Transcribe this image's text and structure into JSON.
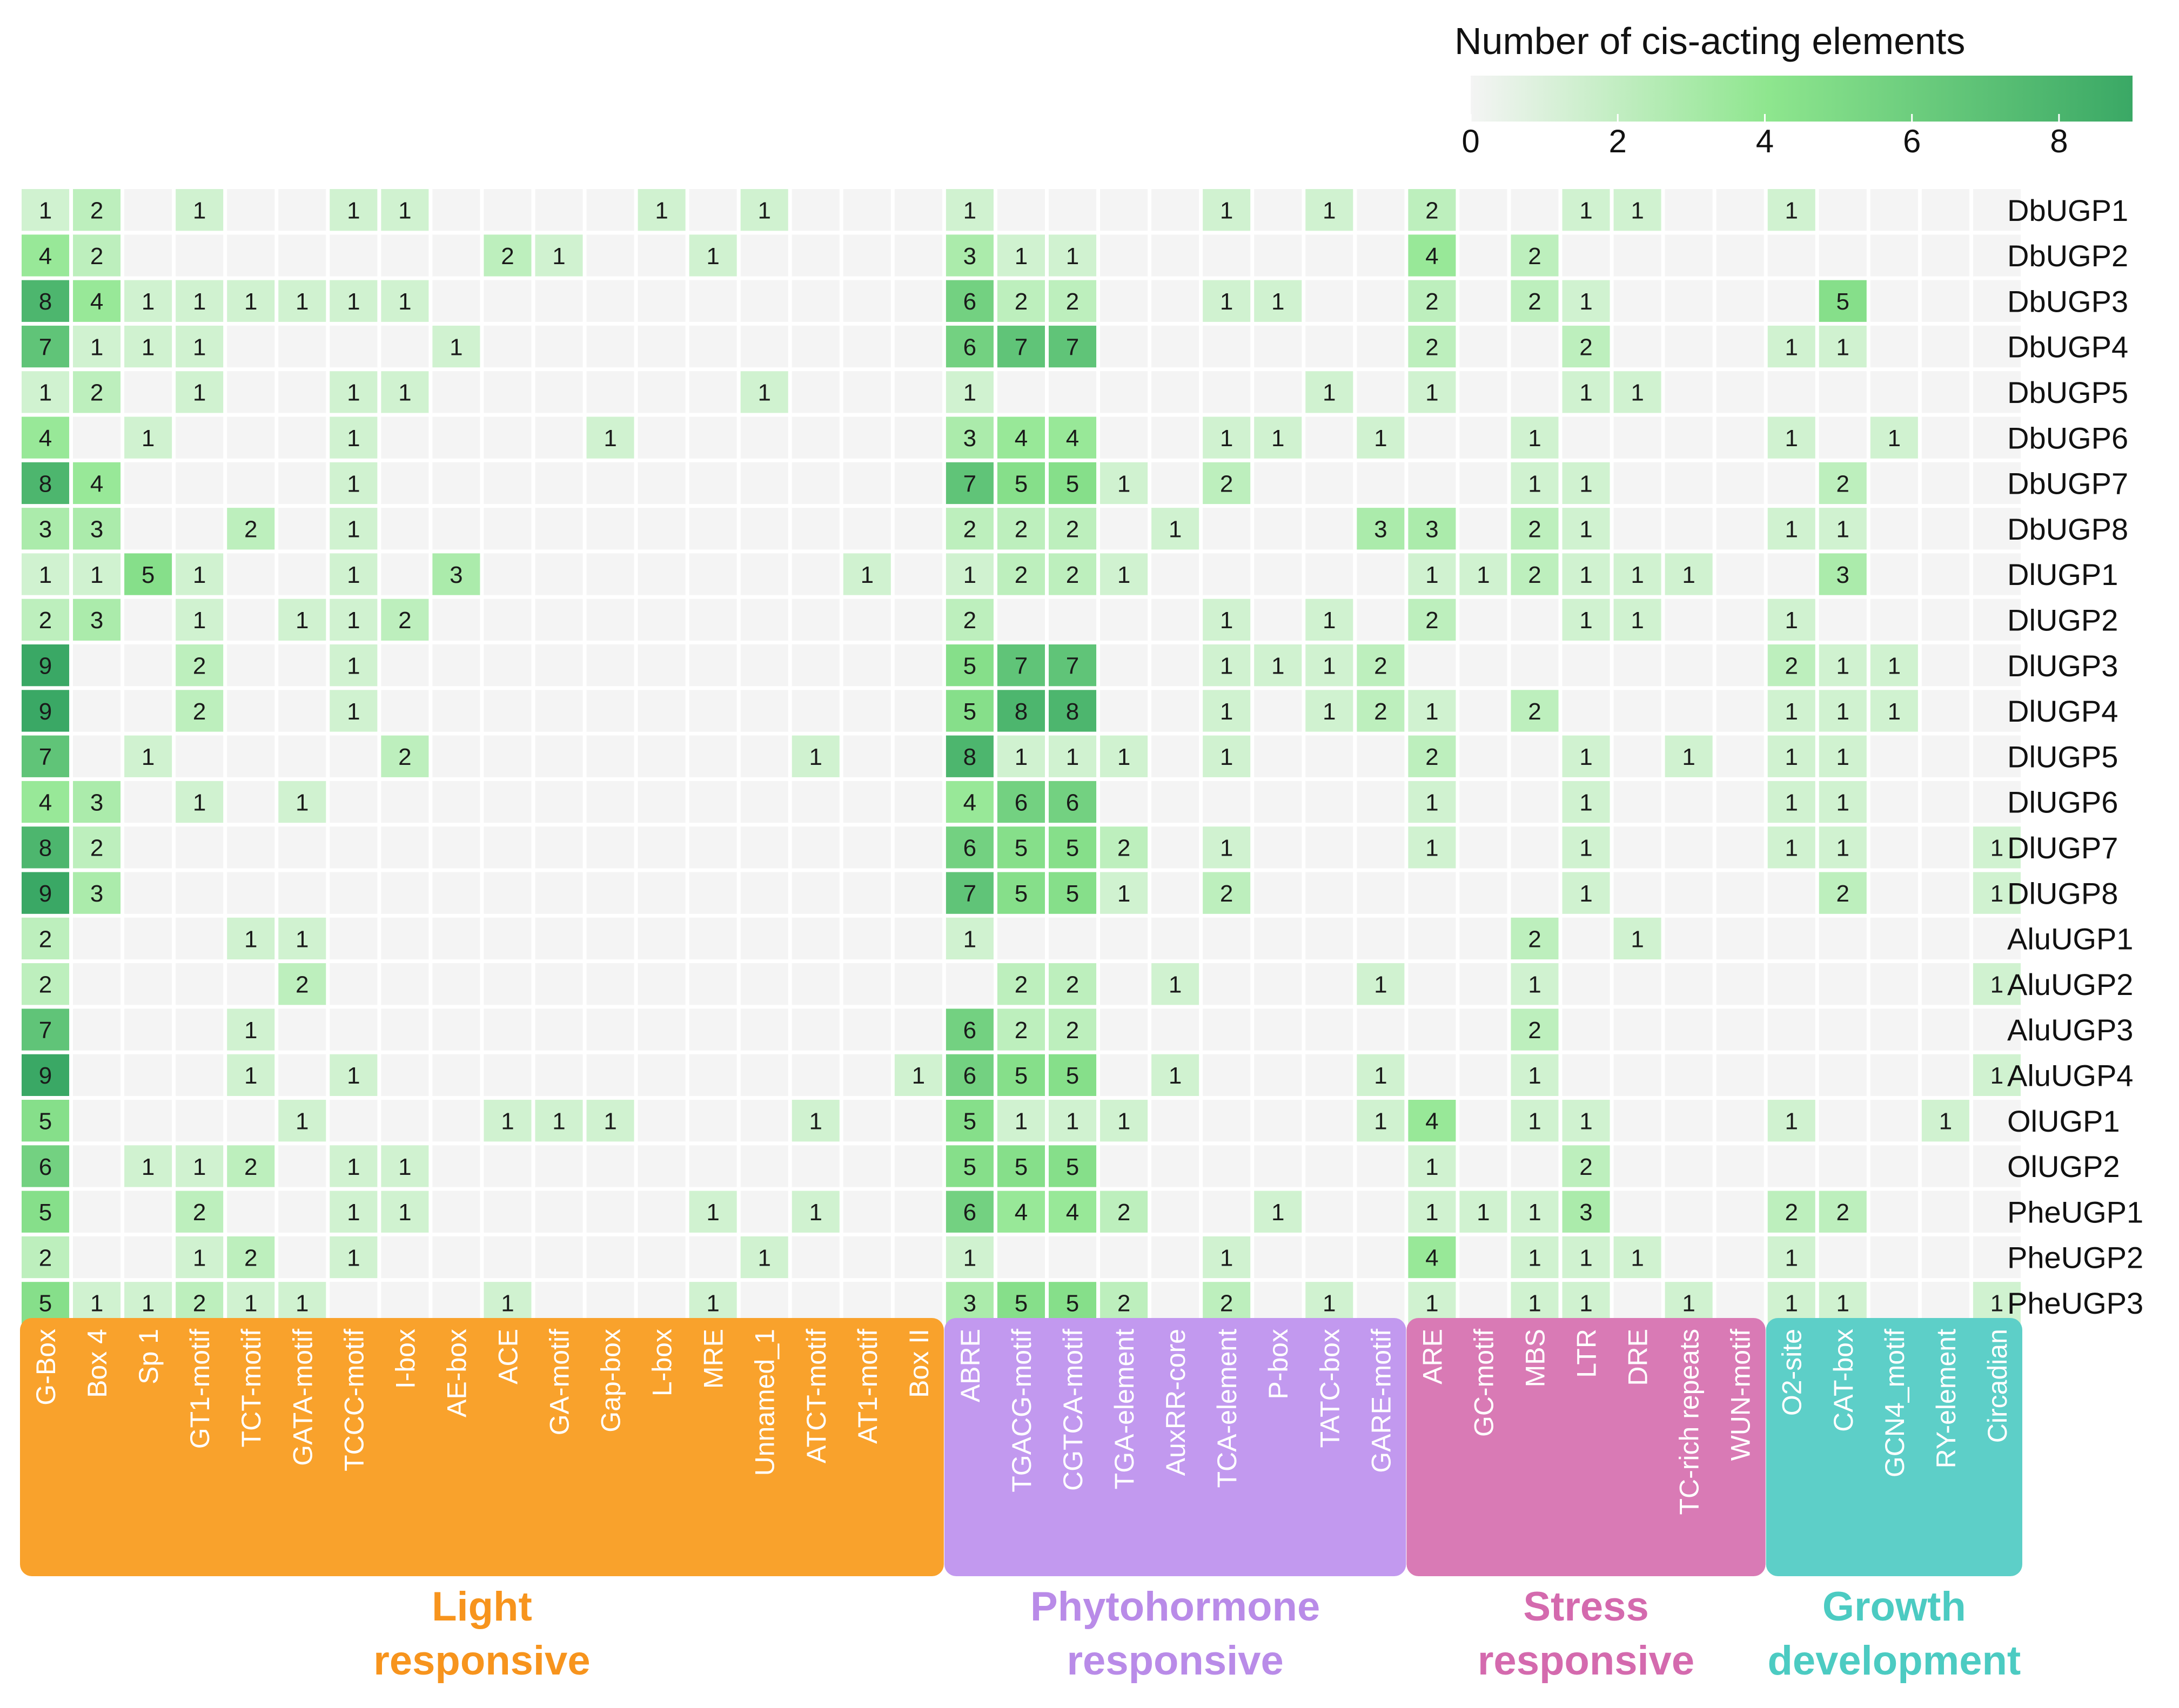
{
  "chart_data": {
    "type": "heatmap",
    "title": "Number of cis-acting elements",
    "legend": {
      "title": "Number of cis-acting elements",
      "ticks": [
        0,
        2,
        4,
        6,
        8
      ],
      "range": [
        0,
        9
      ],
      "colors": [
        "#f4f4f4",
        "#8ee68e",
        "#3aa865"
      ],
      "placement": "top-right"
    },
    "columns": [
      "G-Box",
      "Box 4",
      "Sp 1",
      "GT1-motif",
      "TCT-motif",
      "GATA-motif",
      "TCCC-motif",
      "I-box",
      "AE-box",
      "ACE",
      "GA-motif",
      "Gap-box",
      "L-box",
      "MRE",
      "Unnamed_1",
      "ATCT-motif",
      "AT1-motif",
      "Box II",
      "ABRE",
      "TGACG-motif",
      "CGTCA-motif",
      "TGA-element",
      "AuxRR-core",
      "TCA-element",
      "P-box",
      "TATC-box",
      "GARE-motif",
      "ARE",
      "GC-motif",
      "MBS",
      "LTR",
      "DRE",
      "TC-rich repeats",
      "WUN-motif",
      "O2-site",
      "CAT-box",
      "GCN4_motif",
      "RY-element",
      "Circadian"
    ],
    "rows": [
      "DbUGP1",
      "DbUGP2",
      "DbUGP3",
      "DbUGP4",
      "DbUGP5",
      "DbUGP6",
      "DbUGP7",
      "DbUGP8",
      "DlUGP1",
      "DlUGP2",
      "DlUGP3",
      "DlUGP4",
      "DlUGP5",
      "DlUGP6",
      "DlUGP7",
      "DlUGP8",
      "AluUGP1",
      "AluUGP2",
      "AluUGP3",
      "AluUGP4",
      "OlUGP1",
      "OlUGP2",
      "PheUGP1",
      "PheUGP2",
      "PheUGP3"
    ],
    "values": [
      [
        1,
        2,
        0,
        1,
        0,
        0,
        1,
        1,
        0,
        0,
        0,
        0,
        1,
        0,
        1,
        0,
        0,
        0,
        1,
        0,
        0,
        0,
        0,
        1,
        0,
        1,
        0,
        2,
        0,
        0,
        1,
        1,
        0,
        0,
        1,
        0,
        0,
        0,
        0
      ],
      [
        4,
        2,
        0,
        0,
        0,
        0,
        0,
        0,
        0,
        2,
        1,
        0,
        0,
        1,
        0,
        0,
        0,
        0,
        3,
        1,
        1,
        0,
        0,
        0,
        0,
        0,
        0,
        4,
        0,
        2,
        0,
        0,
        0,
        0,
        0,
        0,
        0,
        0,
        0
      ],
      [
        8,
        4,
        1,
        1,
        1,
        1,
        1,
        1,
        0,
        0,
        0,
        0,
        0,
        0,
        0,
        0,
        0,
        0,
        6,
        2,
        2,
        0,
        0,
        1,
        1,
        0,
        0,
        2,
        0,
        2,
        1,
        0,
        0,
        0,
        0,
        5,
        0,
        0,
        0
      ],
      [
        7,
        1,
        1,
        1,
        0,
        0,
        0,
        0,
        1,
        0,
        0,
        0,
        0,
        0,
        0,
        0,
        0,
        0,
        6,
        7,
        7,
        0,
        0,
        0,
        0,
        0,
        0,
        2,
        0,
        0,
        2,
        0,
        0,
        0,
        1,
        1,
        0,
        0,
        0
      ],
      [
        1,
        2,
        0,
        1,
        0,
        0,
        1,
        1,
        0,
        0,
        0,
        0,
        0,
        0,
        1,
        0,
        0,
        0,
        1,
        0,
        0,
        0,
        0,
        0,
        0,
        1,
        0,
        1,
        0,
        0,
        1,
        1,
        0,
        0,
        0,
        0,
        0,
        0,
        0
      ],
      [
        4,
        0,
        1,
        0,
        0,
        0,
        1,
        0,
        0,
        0,
        0,
        1,
        0,
        0,
        0,
        0,
        0,
        0,
        3,
        4,
        4,
        0,
        0,
        1,
        1,
        0,
        1,
        0,
        0,
        1,
        0,
        0,
        0,
        0,
        1,
        0,
        1,
        0,
        0
      ],
      [
        8,
        4,
        0,
        0,
        0,
        0,
        1,
        0,
        0,
        0,
        0,
        0,
        0,
        0,
        0,
        0,
        0,
        0,
        7,
        5,
        5,
        1,
        0,
        2,
        0,
        0,
        0,
        0,
        0,
        1,
        1,
        0,
        0,
        0,
        0,
        2,
        0,
        0,
        0
      ],
      [
        3,
        3,
        0,
        0,
        2,
        0,
        1,
        0,
        0,
        0,
        0,
        0,
        0,
        0,
        0,
        0,
        0,
        0,
        2,
        2,
        2,
        0,
        1,
        0,
        0,
        0,
        3,
        3,
        0,
        2,
        1,
        0,
        0,
        0,
        1,
        1,
        0,
        0,
        0
      ],
      [
        1,
        1,
        5,
        1,
        0,
        0,
        1,
        0,
        3,
        0,
        0,
        0,
        0,
        0,
        0,
        0,
        1,
        0,
        1,
        2,
        2,
        1,
        0,
        0,
        0,
        0,
        0,
        1,
        1,
        2,
        1,
        1,
        1,
        0,
        0,
        3,
        0,
        0,
        0
      ],
      [
        2,
        3,
        0,
        1,
        0,
        1,
        1,
        2,
        0,
        0,
        0,
        0,
        0,
        0,
        0,
        0,
        0,
        0,
        2,
        0,
        0,
        0,
        0,
        1,
        0,
        1,
        0,
        2,
        0,
        0,
        1,
        1,
        0,
        0,
        1,
        0,
        0,
        0,
        0
      ],
      [
        9,
        0,
        0,
        2,
        0,
        0,
        1,
        0,
        0,
        0,
        0,
        0,
        0,
        0,
        0,
        0,
        0,
        0,
        5,
        7,
        7,
        0,
        0,
        1,
        1,
        1,
        2,
        0,
        0,
        0,
        0,
        0,
        0,
        0,
        2,
        1,
        1,
        0,
        0
      ],
      [
        9,
        0,
        0,
        2,
        0,
        0,
        1,
        0,
        0,
        0,
        0,
        0,
        0,
        0,
        0,
        0,
        0,
        0,
        5,
        8,
        8,
        0,
        0,
        1,
        0,
        1,
        2,
        1,
        0,
        2,
        0,
        0,
        0,
        0,
        1,
        1,
        1,
        0,
        0
      ],
      [
        7,
        0,
        1,
        0,
        0,
        0,
        0,
        2,
        0,
        0,
        0,
        0,
        0,
        0,
        0,
        1,
        0,
        0,
        8,
        1,
        1,
        1,
        0,
        1,
        0,
        0,
        0,
        2,
        0,
        0,
        1,
        0,
        1,
        0,
        1,
        1,
        0,
        0,
        0
      ],
      [
        4,
        3,
        0,
        1,
        0,
        1,
        0,
        0,
        0,
        0,
        0,
        0,
        0,
        0,
        0,
        0,
        0,
        0,
        4,
        6,
        6,
        0,
        0,
        0,
        0,
        0,
        0,
        1,
        0,
        0,
        1,
        0,
        0,
        0,
        1,
        1,
        0,
        0,
        0
      ],
      [
        8,
        2,
        0,
        0,
        0,
        0,
        0,
        0,
        0,
        0,
        0,
        0,
        0,
        0,
        0,
        0,
        0,
        0,
        6,
        5,
        5,
        2,
        0,
        1,
        0,
        0,
        0,
        1,
        0,
        0,
        1,
        0,
        0,
        0,
        1,
        1,
        0,
        0,
        1
      ],
      [
        9,
        3,
        0,
        0,
        0,
        0,
        0,
        0,
        0,
        0,
        0,
        0,
        0,
        0,
        0,
        0,
        0,
        0,
        7,
        5,
        5,
        1,
        0,
        2,
        0,
        0,
        0,
        0,
        0,
        0,
        1,
        0,
        0,
        0,
        0,
        2,
        0,
        0,
        1
      ],
      [
        2,
        0,
        0,
        0,
        1,
        1,
        0,
        0,
        0,
        0,
        0,
        0,
        0,
        0,
        0,
        0,
        0,
        0,
        1,
        0,
        0,
        0,
        0,
        0,
        0,
        0,
        0,
        0,
        0,
        2,
        0,
        1,
        0,
        0,
        0,
        0,
        0,
        0,
        0
      ],
      [
        2,
        0,
        0,
        0,
        0,
        2,
        0,
        0,
        0,
        0,
        0,
        0,
        0,
        0,
        0,
        0,
        0,
        0,
        0,
        2,
        2,
        0,
        1,
        0,
        0,
        0,
        1,
        0,
        0,
        1,
        0,
        0,
        0,
        0,
        0,
        0,
        0,
        0,
        1
      ],
      [
        7,
        0,
        0,
        0,
        1,
        0,
        0,
        0,
        0,
        0,
        0,
        0,
        0,
        0,
        0,
        0,
        0,
        0,
        6,
        2,
        2,
        0,
        0,
        0,
        0,
        0,
        0,
        0,
        0,
        2,
        0,
        0,
        0,
        0,
        0,
        0,
        0,
        0,
        0
      ],
      [
        9,
        0,
        0,
        0,
        1,
        0,
        1,
        0,
        0,
        0,
        0,
        0,
        0,
        0,
        0,
        0,
        0,
        1,
        6,
        5,
        5,
        0,
        1,
        0,
        0,
        0,
        1,
        0,
        0,
        1,
        0,
        0,
        0,
        0,
        0,
        0,
        0,
        0,
        1
      ],
      [
        5,
        0,
        0,
        0,
        0,
        1,
        0,
        0,
        0,
        1,
        1,
        1,
        0,
        0,
        0,
        1,
        0,
        0,
        5,
        1,
        1,
        1,
        0,
        0,
        0,
        0,
        1,
        4,
        0,
        1,
        1,
        0,
        0,
        0,
        1,
        0,
        0,
        1,
        0
      ],
      [
        6,
        0,
        1,
        1,
        2,
        0,
        1,
        1,
        0,
        0,
        0,
        0,
        0,
        0,
        0,
        0,
        0,
        0,
        5,
        5,
        5,
        0,
        0,
        0,
        0,
        0,
        0,
        1,
        0,
        0,
        2,
        0,
        0,
        0,
        0,
        0,
        0,
        0,
        0
      ],
      [
        5,
        0,
        0,
        2,
        0,
        0,
        1,
        1,
        0,
        0,
        0,
        0,
        0,
        1,
        0,
        1,
        0,
        0,
        6,
        4,
        4,
        2,
        0,
        0,
        1,
        0,
        0,
        1,
        1,
        1,
        3,
        0,
        0,
        0,
        2,
        2,
        0,
        0,
        0
      ],
      [
        2,
        0,
        0,
        1,
        2,
        0,
        1,
        0,
        0,
        0,
        0,
        0,
        0,
        0,
        1,
        0,
        0,
        0,
        1,
        0,
        0,
        0,
        0,
        1,
        0,
        0,
        0,
        4,
        0,
        1,
        1,
        1,
        0,
        0,
        1,
        0,
        0,
        0,
        0
      ],
      [
        5,
        1,
        1,
        2,
        1,
        1,
        0,
        0,
        0,
        1,
        0,
        0,
        0,
        1,
        0,
        0,
        0,
        0,
        3,
        5,
        5,
        2,
        0,
        2,
        0,
        1,
        0,
        1,
        0,
        1,
        1,
        0,
        1,
        0,
        1,
        1,
        0,
        0,
        1
      ]
    ],
    "groups": [
      {
        "name": "Light responsive",
        "line1": "Light",
        "line2": "responsive",
        "start": 0,
        "end": 17,
        "color": "#f9a22c",
        "text_color": "#f7941d"
      },
      {
        "name": "Phytohormone responsive",
        "line1": "Phytohormone",
        "line2": "responsive",
        "start": 18,
        "end": 26,
        "color": "#c299ef",
        "text_color": "#b98be8"
      },
      {
        "name": "Stress responsive",
        "line1": "Stress",
        "line2": "responsive",
        "start": 27,
        "end": 33,
        "color": "#d97ab5",
        "text_color": "#d46aae"
      },
      {
        "name": "Growth development",
        "line1": "Growth",
        "line2": "development",
        "start": 34,
        "end": 38,
        "color": "#5dcfc8",
        "text_color": "#4ccbc2"
      }
    ]
  }
}
